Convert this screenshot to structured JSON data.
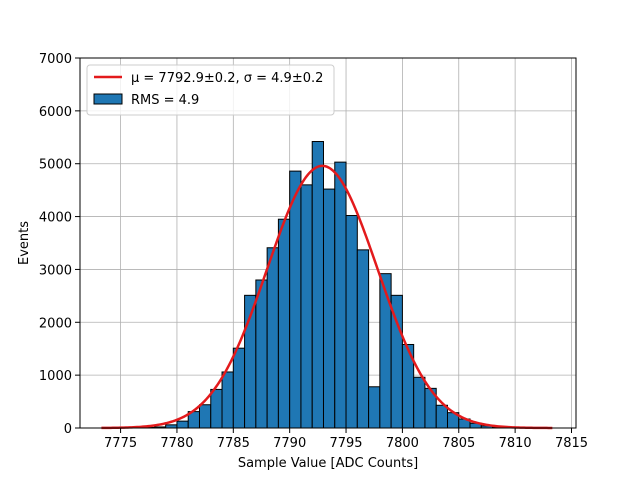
{
  "chart_data": {
    "type": "bar",
    "title": "",
    "xlabel": "Sample Value [ADC Counts]",
    "ylabel": "Events",
    "xlim": [
      7771.4,
      7815.4
    ],
    "ylim": [
      0,
      7000
    ],
    "x_ticks": [
      7775,
      7780,
      7785,
      7790,
      7795,
      7800,
      7805,
      7810,
      7815
    ],
    "y_ticks": [
      0,
      1000,
      2000,
      3000,
      4000,
      5000,
      6000,
      7000
    ],
    "grid": true,
    "legend_placement": "upper-left",
    "histogram": {
      "name": "RMS = 4.9",
      "color": "#1f77b4",
      "edge_color": "#000000",
      "bin_width": 1.0,
      "bin_start": 7776.0,
      "counts": [
        5,
        10,
        20,
        60,
        130,
        310,
        440,
        730,
        1060,
        1510,
        2510,
        2800,
        3410,
        3950,
        4860,
        4600,
        5420,
        4520,
        5030,
        4020,
        3370,
        780,
        2920,
        2510,
        1580,
        960,
        750,
        430,
        290,
        170,
        90,
        40,
        20,
        10
      ]
    },
    "fit": {
      "name": "μ = 7792.9±0.2, σ = 4.9±0.2",
      "color": "#e31a1c",
      "mu": 7792.9,
      "sigma": 4.9,
      "amplitude": 4960,
      "x_range": [
        7773.3,
        7813.3
      ]
    }
  },
  "legend": {
    "fit_label_prefix": "μ = 7792.9±0.2, ",
    "fit_label_suffix": "σ = 4.9±0.2",
    "hist_label": "RMS = 4.9"
  }
}
